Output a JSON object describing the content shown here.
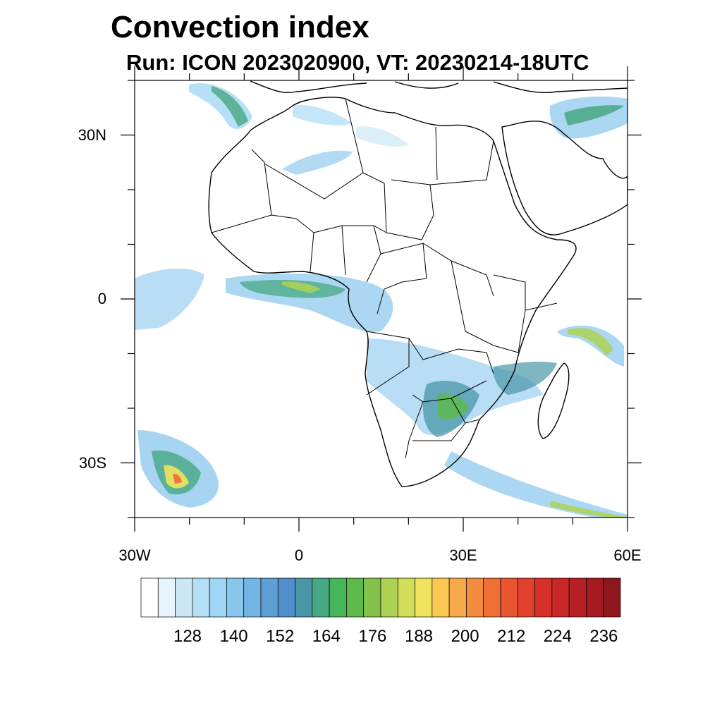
{
  "title": "Convection index",
  "subtitle": "Run: ICON 2023020900,  VT: 20230214-18UTC",
  "map": {
    "lon_range": [
      -30,
      60
    ],
    "lat_range": [
      -40,
      40
    ],
    "lat_labels": [
      {
        "text": "30N",
        "lat": 30
      },
      {
        "text": "0",
        "lat": 0
      },
      {
        "text": "30S",
        "lat": -30
      }
    ],
    "lon_labels": [
      {
        "text": "30W",
        "lon": -30
      },
      {
        "text": "0",
        "lon": 0
      },
      {
        "text": "30E",
        "lon": 30
      },
      {
        "text": "60E",
        "lon": 60
      }
    ]
  },
  "colorbar": {
    "labels": [
      "128",
      "140",
      "152",
      "164",
      "176",
      "188",
      "200",
      "212",
      "224",
      "236"
    ],
    "colors": [
      "#ffffff",
      "#e6f4fc",
      "#cce8f7",
      "#b5dff5",
      "#9fd6f3",
      "#88c6ec",
      "#73b6e4",
      "#5e9fd6",
      "#4f8fcc",
      "#4a96a8",
      "#47a884",
      "#45b45a",
      "#5dba4a",
      "#85c24c",
      "#add254",
      "#d2de5a",
      "#f0e35e",
      "#f8c852",
      "#f7a84a",
      "#f48c40",
      "#ef6f36",
      "#e85530",
      "#e0402c",
      "#d6302a",
      "#c82728",
      "#b61f24",
      "#a41a20",
      "#8f161c"
    ]
  }
}
